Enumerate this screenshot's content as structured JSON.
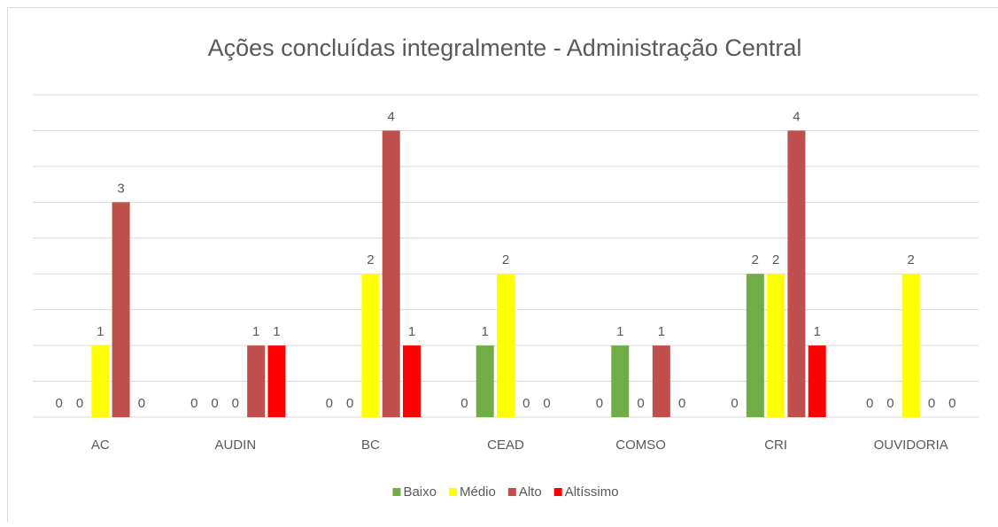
{
  "chart_data": {
    "type": "bar",
    "title": "Ações concluídas integralmente - Administração Central",
    "categories": [
      "AC",
      "AUDIN",
      "BC",
      "CEAD",
      "COMSO",
      "CRI",
      "OUVIDORIA"
    ],
    "series": [
      {
        "name": null,
        "color": null,
        "values": [
          0,
          0,
          0,
          0,
          0,
          0,
          0
        ]
      },
      {
        "name": "Baixo",
        "color": "#70ad47",
        "values": [
          0,
          0,
          0,
          1,
          1,
          2,
          0
        ]
      },
      {
        "name": "Médio",
        "color": "#ffff00",
        "values": [
          1,
          0,
          2,
          2,
          0,
          2,
          2
        ]
      },
      {
        "name": "Alto",
        "color": "#c0504d",
        "values": [
          3,
          1,
          4,
          0,
          1,
          4,
          0
        ]
      },
      {
        "name": "Altíssimo",
        "color": "#ff0000",
        "values": [
          0,
          1,
          1,
          0,
          0,
          1,
          0
        ]
      }
    ],
    "ylim": [
      0,
      4.5
    ],
    "yticks": [
      0,
      0.5,
      1,
      1.5,
      2,
      2.5,
      3,
      3.5,
      4,
      4.5
    ],
    "grid": true,
    "legend": "bottom"
  }
}
